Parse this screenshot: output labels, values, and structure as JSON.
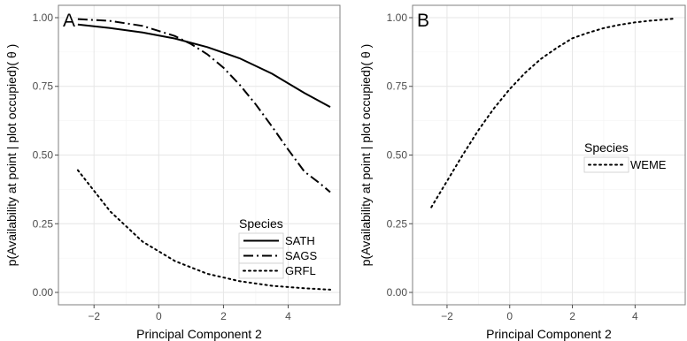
{
  "chart_data": [
    {
      "type": "line",
      "panel_label": "A",
      "xlabel": "Principal Component 2",
      "ylabel": "p(Availability at point | plot occupied)( θ )",
      "xlim": [
        -3.1,
        5.6
      ],
      "ylim": [
        -0.045,
        1.045
      ],
      "x_ticks": [
        -2,
        0,
        2,
        4
      ],
      "x_tick_labels": [
        "−2",
        "0",
        "2",
        "4"
      ],
      "y_ticks": [
        0,
        0.25,
        0.5,
        0.75,
        1
      ],
      "y_tick_labels": [
        "0.00",
        "0.25",
        "0.50",
        "0.75",
        "1.00"
      ],
      "grid": true,
      "legend": {
        "title": "Species",
        "position": "bottom-right"
      },
      "series": [
        {
          "name": "SATH",
          "line_style": "solid",
          "x": [
            -2.5,
            -1.5,
            -0.5,
            0.5,
            1.5,
            2.5,
            3.5,
            4.5,
            5.3
          ],
          "y": [
            0.975,
            0.962,
            0.946,
            0.924,
            0.893,
            0.852,
            0.796,
            0.726,
            0.675
          ]
        },
        {
          "name": "SAGS",
          "line_style": "dotdash",
          "x": [
            -2.5,
            -1.5,
            -0.5,
            0.5,
            1.0,
            1.5,
            2.0,
            2.5,
            3.0,
            3.5,
            4.0,
            4.5,
            5.0,
            5.3
          ],
          "y": [
            0.995,
            0.988,
            0.97,
            0.933,
            0.904,
            0.867,
            0.818,
            0.756,
            0.684,
            0.604,
            0.52,
            0.44,
            0.395,
            0.365
          ]
        },
        {
          "name": "GRFL",
          "line_style": "dotted",
          "x": [
            -2.5,
            -1.5,
            -0.5,
            0.5,
            1.5,
            2.5,
            3.5,
            4.5,
            5.3
          ],
          "y": [
            0.445,
            0.295,
            0.185,
            0.114,
            0.068,
            0.041,
            0.024,
            0.015,
            0.01
          ]
        }
      ]
    },
    {
      "type": "line",
      "panel_label": "B",
      "xlabel": "Principal Component 2",
      "ylabel": "p(Availability at point | plot occupied)( θ )",
      "xlim": [
        -3.1,
        5.6
      ],
      "ylim": [
        -0.045,
        1.045
      ],
      "x_ticks": [
        -2,
        0,
        2,
        4
      ],
      "x_tick_labels": [
        "−2",
        "0",
        "2",
        "4"
      ],
      "y_ticks": [
        0,
        0.25,
        0.5,
        0.75,
        1
      ],
      "y_tick_labels": [
        "0.00",
        "0.25",
        "0.50",
        "0.75",
        "1.00"
      ],
      "grid": true,
      "legend": {
        "title": "Species",
        "position": "right"
      },
      "series": [
        {
          "name": "WEME",
          "line_style": "dotted",
          "x": [
            -2.5,
            -2.0,
            -1.5,
            -1.0,
            -0.5,
            0.0,
            0.5,
            1.0,
            1.5,
            2.0,
            2.5,
            3.0,
            3.5,
            4.0,
            4.5,
            5.0,
            5.3
          ],
          "y": [
            0.31,
            0.405,
            0.5,
            0.59,
            0.67,
            0.74,
            0.8,
            0.85,
            0.89,
            0.925,
            0.945,
            0.962,
            0.974,
            0.983,
            0.989,
            0.994,
            0.997
          ]
        }
      ]
    }
  ]
}
